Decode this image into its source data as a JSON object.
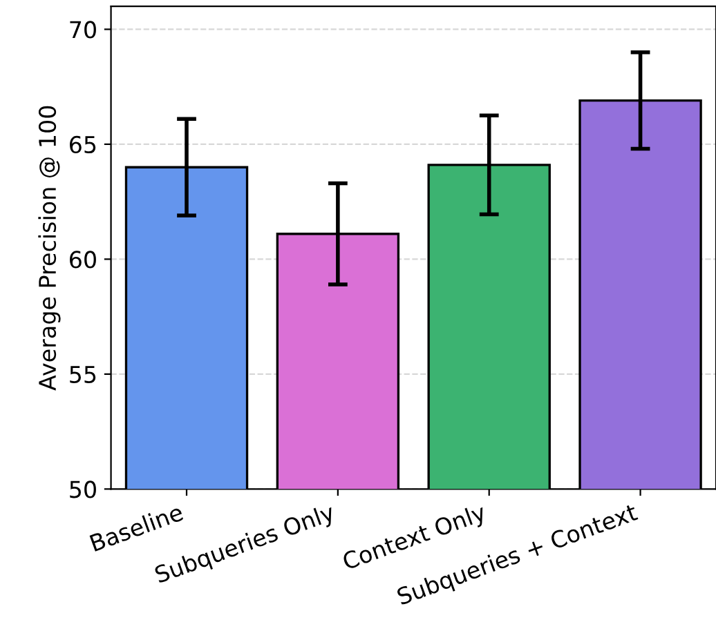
{
  "chart_data": {
    "type": "bar",
    "ylabel": "Average Precision @ 100",
    "categories": [
      "Baseline",
      "Subqueries Only",
      "Context Only",
      "Subqueries + Context"
    ],
    "values": [
      64.0,
      61.1,
      64.1,
      66.9
    ],
    "errors": [
      2.1,
      2.2,
      2.15,
      2.1
    ],
    "colors": [
      "#6495ed",
      "#da70d6",
      "#3cb371",
      "#9370db"
    ],
    "ylim": [
      50,
      71
    ],
    "yticks": [
      50,
      55,
      60,
      65,
      70
    ],
    "grid": "y",
    "line_style": "dashed"
  }
}
